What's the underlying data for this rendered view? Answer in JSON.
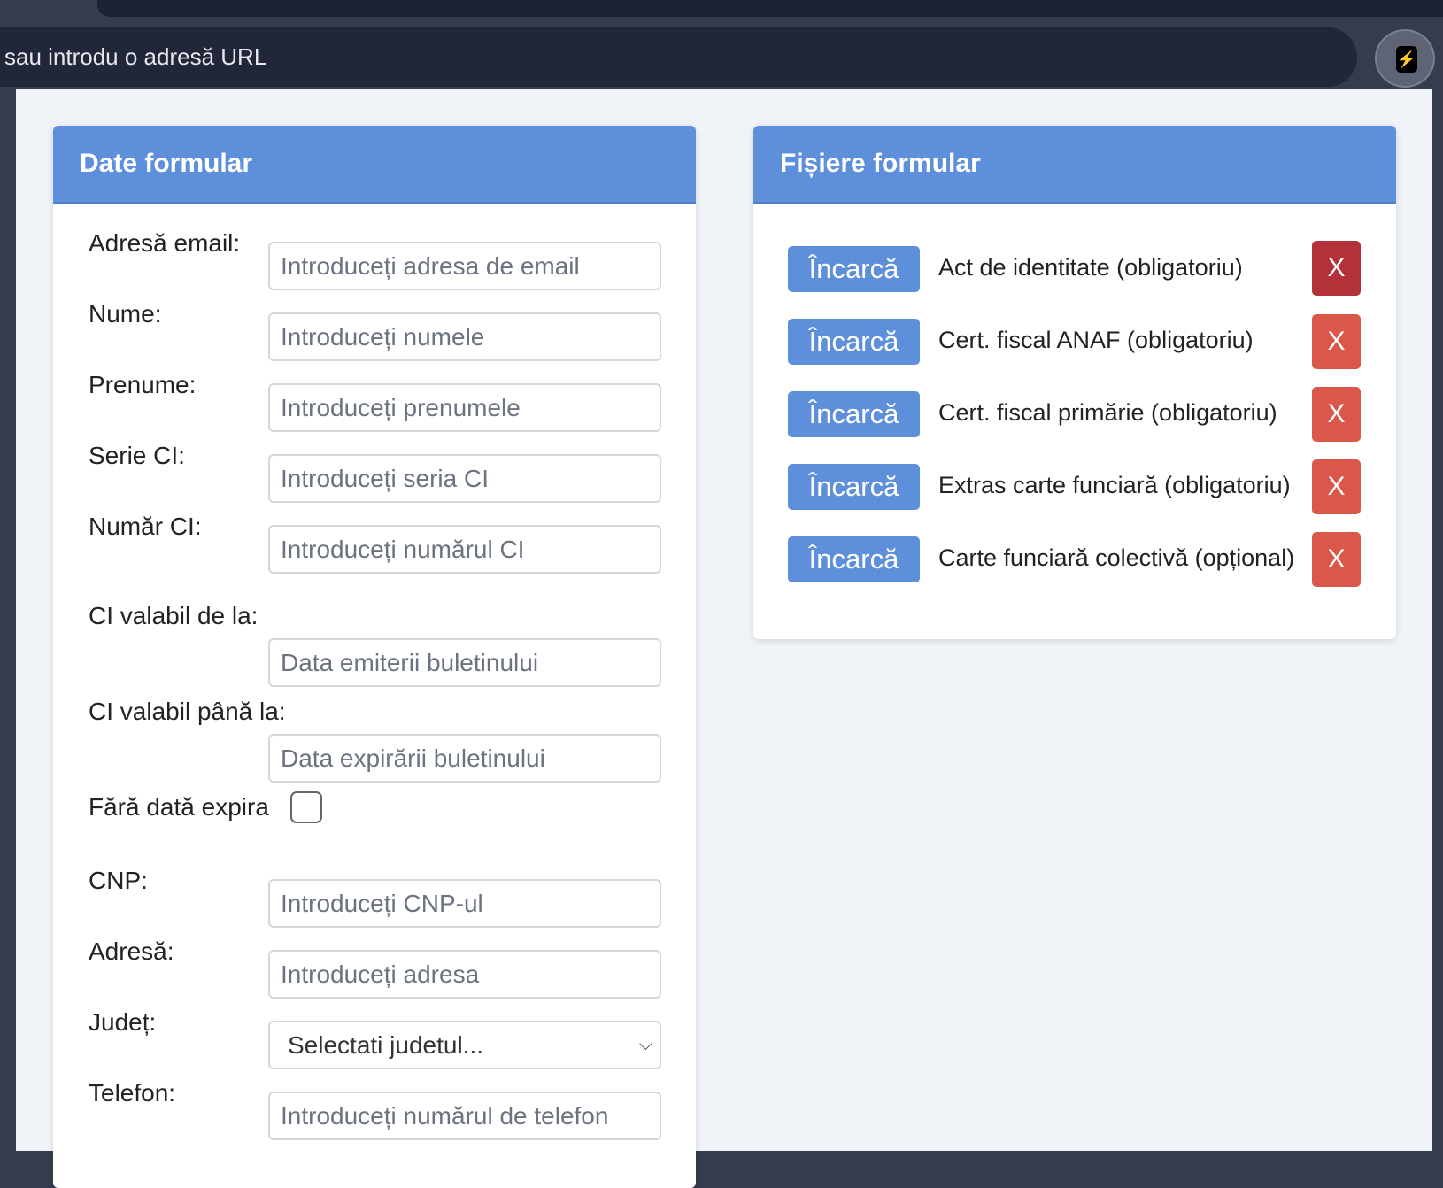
{
  "browser": {
    "url_placeholder": "sau introdu o adresă URL",
    "extension_icon": "lightning-icon"
  },
  "left_card": {
    "title": "Date formular",
    "fields": [
      {
        "label": "Adresă email:",
        "placeholder": "Introduceți adresa de email"
      },
      {
        "label": "Nume:",
        "placeholder": "Introduceți numele"
      },
      {
        "label": "Prenume:",
        "placeholder": "Introduceți prenumele"
      },
      {
        "label": "Serie CI:",
        "placeholder": "Introduceți seria CI"
      },
      {
        "label": "Număr CI:",
        "placeholder": "Introduceți numărul CI"
      },
      {
        "label": "CI valabil de la:",
        "placeholder": "Data emiterii buletinului"
      },
      {
        "label": "CI valabil până la:",
        "placeholder": "Data expirării buletinului"
      },
      {
        "label": "Fără dată expira",
        "suffix": ":",
        "checked": false
      },
      {
        "label": "CNP:",
        "placeholder": "Introduceți CNP-ul"
      },
      {
        "label": "Adresă:",
        "placeholder": "Introduceți adresa"
      },
      {
        "label": "Județ:",
        "selected": "Selectati judetul..."
      },
      {
        "label": "Telefon:",
        "placeholder": "Introduceți numărul de telefon"
      }
    ]
  },
  "right_card": {
    "title": "Fișiere formular",
    "upload_label": "Încarcă",
    "remove_label": "X",
    "files": [
      {
        "name": "Act de identitate (obligatoriu)"
      },
      {
        "name": "Cert. fiscal ANAF (obligatoriu)"
      },
      {
        "name": "Cert. fiscal primărie (obligatoriu)"
      },
      {
        "name": "Extras carte funciară (obligatoriu)"
      },
      {
        "name": "Carte funciară colectivă (opțional)"
      }
    ]
  },
  "colors": {
    "header": "#5e8fdb",
    "remove": "#d9584a",
    "remove_hover": "#b3323a"
  }
}
